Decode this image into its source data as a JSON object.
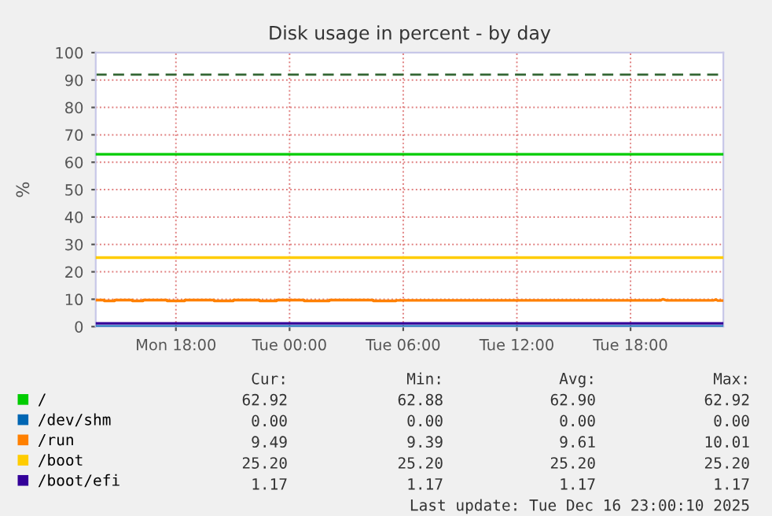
{
  "chart_data": {
    "type": "line",
    "title": "Disk usage in percent - by day",
    "ylabel": "%",
    "xlim": [
      "2025-12-15T13:46",
      "2025-12-16T22:54"
    ],
    "xticks": [
      {
        "value": "2025-12-15T18:00",
        "label": "Mon 18:00"
      },
      {
        "value": "2025-12-16T00:00",
        "label": "Tue 00:00"
      },
      {
        "value": "2025-12-16T06:00",
        "label": "Tue 06:00"
      },
      {
        "value": "2025-12-16T12:00",
        "label": "Tue 12:00"
      },
      {
        "value": "2025-12-16T18:00",
        "label": "Tue 18:00"
      }
    ],
    "ylim": [
      0,
      100
    ],
    "yticks": [
      0,
      10,
      20,
      30,
      40,
      50,
      60,
      70,
      80,
      90,
      100
    ],
    "grid": true,
    "legend": "bottom",
    "marker": "none",
    "line_style": "solid",
    "x": [
      "2025-12-15T13:46",
      "2025-12-16T22:54"
    ],
    "series": [
      {
        "name": "/",
        "color": "#00cc00",
        "values": [
          62.9,
          62.9
        ]
      },
      {
        "name": "/dev/shm",
        "color": "#0066b3",
        "values": [
          0,
          0
        ]
      },
      {
        "name": "/run",
        "color": "#ff8000",
        "x": [
          "2025-12-15T13:46",
          "2025-12-15T14:13",
          "2025-12-15T14:13",
          "2025-12-15T14:46",
          "2025-12-15T14:46",
          "2025-12-15T15:42",
          "2025-12-15T15:42",
          "2025-12-15T16:16",
          "2025-12-15T16:16",
          "2025-12-15T17:32",
          "2025-12-15T17:32",
          "2025-12-15T18:28",
          "2025-12-15T18:28",
          "2025-12-15T20:01",
          "2025-12-15T20:01",
          "2025-12-15T21:02",
          "2025-12-15T21:02",
          "2025-12-15T22:25",
          "2025-12-15T22:25",
          "2025-12-15T23:19",
          "2025-12-15T23:19",
          "2025-12-16T00:46",
          "2025-12-16T00:46",
          "2025-12-16T02:06",
          "2025-12-16T02:06",
          "2025-12-16T04:25",
          "2025-12-16T04:25",
          "2025-12-16T05:37",
          "2025-12-16T05:37",
          "2025-12-16T19:36",
          "2025-12-16T19:42",
          "2025-12-16T19:54",
          "2025-12-16T22:24",
          "2025-12-16T22:30",
          "2025-12-16T22:36",
          "2025-12-16T22:54"
        ],
        "values": [
          9.7,
          9.7,
          9.4,
          9.4,
          9.7,
          9.7,
          9.4,
          9.4,
          9.7,
          9.7,
          9.4,
          9.4,
          9.7,
          9.7,
          9.4,
          9.4,
          9.7,
          9.7,
          9.4,
          9.4,
          9.7,
          9.7,
          9.4,
          9.4,
          9.7,
          9.7,
          9.4,
          9.4,
          9.6,
          9.6,
          10.0,
          9.6,
          9.6,
          9.9,
          9.5,
          9.5
        ]
      },
      {
        "name": "/boot",
        "color": "#ffcc00",
        "values": [
          25.2,
          25.2
        ]
      },
      {
        "name": "/boot/efi",
        "color": "#330099",
        "values": [
          1.2,
          1.2
        ]
      }
    ],
    "ref_lines": [
      {
        "axis": "y",
        "value": 92,
        "color": "#336633",
        "line_style": "dashed"
      }
    ],
    "annotations": [
      "Cur:",
      "Min:",
      "Avg:",
      "Max:",
      "62.92",
      "62.88",
      "62.90",
      "62.92",
      "0.00",
      "0.00",
      "0.00",
      "0.00",
      "9.49",
      "9.39",
      "9.61",
      "10.01",
      "25.20",
      "25.20",
      "25.20",
      "25.20",
      "1.17",
      "1.17",
      "1.17",
      "1.17",
      "Last update: Tue Dec 16 23:00:10 2025"
    ]
  }
}
